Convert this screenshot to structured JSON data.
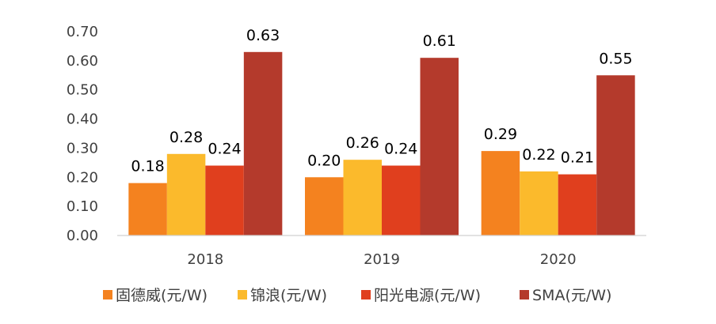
{
  "chart_data": {
    "type": "bar",
    "categories": [
      "2018",
      "2019",
      "2020"
    ],
    "series": [
      {
        "name": "固德威(元/W)",
        "color": "#F4821F",
        "values": [
          0.18,
          0.2,
          0.29
        ],
        "labels": [
          "0.18",
          "0.20",
          "0.29"
        ]
      },
      {
        "name": "锦浪(元/W)",
        "color": "#FBBA2C",
        "values": [
          0.28,
          0.26,
          0.22
        ],
        "labels": [
          "0.28",
          "0.26",
          "0.22"
        ]
      },
      {
        "name": "阳光电源(元/W)",
        "color": "#E03F1E",
        "values": [
          0.24,
          0.24,
          0.21
        ],
        "labels": [
          "0.24",
          "0.24",
          "0.21"
        ]
      },
      {
        "name": "SMA(元/W)",
        "color": "#B43A2C",
        "values": [
          0.63,
          0.61,
          0.55
        ],
        "labels": [
          "0.63",
          "0.61",
          "0.55"
        ]
      }
    ],
    "yticks": [
      "0.00",
      "0.10",
      "0.20",
      "0.30",
      "0.40",
      "0.50",
      "0.60",
      "0.70"
    ],
    "ylim": [
      0,
      0.7
    ],
    "title": "",
    "xlabel": "",
    "ylabel": "",
    "grid": false,
    "legend": "bottom"
  }
}
